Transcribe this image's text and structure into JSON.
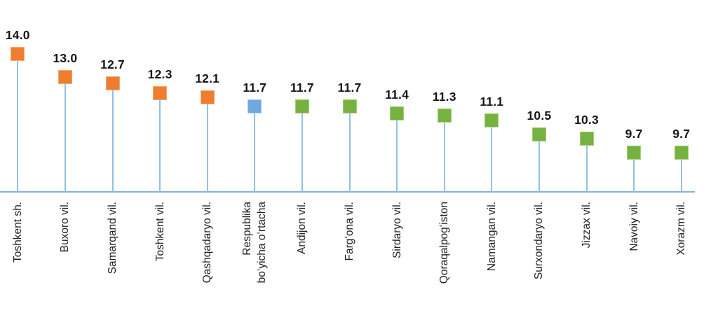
{
  "chart_data": {
    "type": "bar",
    "variant": "lollipop",
    "title": "",
    "xlabel": "",
    "ylabel": "",
    "categories": [
      "Toshkent sh.",
      "Buxoro vil.",
      "Samarqand vil.",
      "Toshkent vil.",
      "Qashqadaryo vil.",
      "Respublika\nboʻyicha oʻrtacha",
      "Andijon vil.",
      "Fargʻona vil.",
      "Sirdaryo vil.",
      "Qoraqalpogʻiston",
      "Namangan vil.",
      "Surxondaryo vil.",
      "Jizzax vil.",
      "Navoiy vil.",
      "Xorazm vil."
    ],
    "values": [
      14.0,
      13.0,
      12.7,
      12.3,
      12.1,
      11.7,
      11.7,
      11.7,
      11.4,
      11.3,
      11.1,
      10.5,
      10.3,
      9.7,
      9.7
    ],
    "value_labels": [
      "14.0",
      "13.0",
      "12.7",
      "12.3",
      "12.1",
      "11.7",
      "11.7",
      "11.7",
      "11.4",
      "11.3",
      "11.1",
      "10.5",
      "10.3",
      "9.7",
      "9.7"
    ],
    "point_colors": [
      "orange",
      "orange",
      "orange",
      "orange",
      "orange",
      "blue",
      "green",
      "green",
      "green",
      "green",
      "green",
      "green",
      "green",
      "green",
      "green"
    ],
    "marker_shape": "square",
    "ylim": [
      8.0,
      14.6
    ],
    "grid": false,
    "legend": "none"
  },
  "palette": {
    "orange": "#EE7D2F",
    "blue": "#71A7DF",
    "green": "#76B240",
    "orange_border": "#F5A96F",
    "blue_border": "#A3C6EE",
    "green_border": "#A3CC78",
    "stem": "#93C0E5",
    "axis": "#82B4DC",
    "value_text": "#161616",
    "category_text": "#212121"
  }
}
